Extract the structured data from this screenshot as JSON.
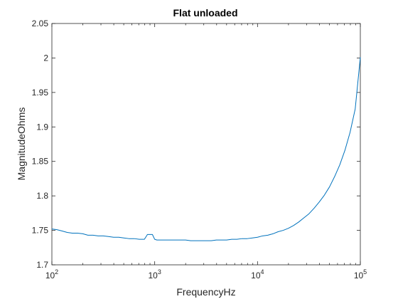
{
  "chart_data": {
    "type": "line",
    "title": "Flat unloaded",
    "xlabel": "FrequencyHz",
    "ylabel": "MagnitudeOhms",
    "xscale": "log",
    "xlim": [
      100,
      100000
    ],
    "ylim": [
      1.7,
      2.05
    ],
    "xticks": [
      {
        "value": 100,
        "base": "10",
        "exp": "2"
      },
      {
        "value": 1000,
        "base": "10",
        "exp": "3"
      },
      {
        "value": 10000,
        "base": "10",
        "exp": "4"
      },
      {
        "value": 100000,
        "base": "10",
        "exp": "5"
      }
    ],
    "yticks": [
      {
        "value": 1.7,
        "label": "1.7"
      },
      {
        "value": 1.75,
        "label": "1.75"
      },
      {
        "value": 1.8,
        "label": "1.8"
      },
      {
        "value": 1.85,
        "label": "1.85"
      },
      {
        "value": 1.9,
        "label": "1.9"
      },
      {
        "value": 1.95,
        "label": "1.95"
      },
      {
        "value": 2.0,
        "label": "2"
      },
      {
        "value": 2.05,
        "label": "2.05"
      }
    ],
    "grid": false,
    "legend": "none",
    "series": [
      {
        "color": "#0072bd",
        "points": [
          [
            100,
            1.752
          ],
          [
            112,
            1.751
          ],
          [
            126,
            1.749
          ],
          [
            141,
            1.747
          ],
          [
            158,
            1.746
          ],
          [
            178,
            1.746
          ],
          [
            200,
            1.745
          ],
          [
            224,
            1.743
          ],
          [
            251,
            1.743
          ],
          [
            282,
            1.742
          ],
          [
            316,
            1.742
          ],
          [
            355,
            1.741
          ],
          [
            398,
            1.74
          ],
          [
            447,
            1.74
          ],
          [
            501,
            1.739
          ],
          [
            562,
            1.738
          ],
          [
            631,
            1.738
          ],
          [
            708,
            1.737
          ],
          [
            794,
            1.737
          ],
          [
            850,
            1.744
          ],
          [
            891,
            1.744
          ],
          [
            950,
            1.744
          ],
          [
            1000,
            1.737
          ],
          [
            1050,
            1.736
          ],
          [
            1122,
            1.736
          ],
          [
            1259,
            1.736
          ],
          [
            1413,
            1.736
          ],
          [
            1585,
            1.736
          ],
          [
            1778,
            1.736
          ],
          [
            1995,
            1.736
          ],
          [
            2239,
            1.735
          ],
          [
            2512,
            1.735
          ],
          [
            2818,
            1.735
          ],
          [
            3162,
            1.735
          ],
          [
            3548,
            1.735
          ],
          [
            3981,
            1.736
          ],
          [
            4467,
            1.736
          ],
          [
            5012,
            1.736
          ],
          [
            5623,
            1.737
          ],
          [
            6310,
            1.737
          ],
          [
            7079,
            1.738
          ],
          [
            7943,
            1.738
          ],
          [
            8913,
            1.739
          ],
          [
            10000,
            1.74
          ],
          [
            11220,
            1.742
          ],
          [
            12589,
            1.743
          ],
          [
            14125,
            1.745
          ],
          [
            15849,
            1.748
          ],
          [
            17783,
            1.75
          ],
          [
            19953,
            1.753
          ],
          [
            22387,
            1.757
          ],
          [
            25119,
            1.762
          ],
          [
            28184,
            1.768
          ],
          [
            31623,
            1.774
          ],
          [
            35481,
            1.782
          ],
          [
            39811,
            1.791
          ],
          [
            44668,
            1.801
          ],
          [
            50119,
            1.813
          ],
          [
            56234,
            1.828
          ],
          [
            63096,
            1.845
          ],
          [
            70795,
            1.866
          ],
          [
            79433,
            1.892
          ],
          [
            89125,
            1.926
          ],
          [
            100000,
            2.001
          ]
        ]
      }
    ]
  },
  "colors": {
    "line": "#0072bd",
    "axes": "#262626",
    "background": "#ffffff"
  }
}
